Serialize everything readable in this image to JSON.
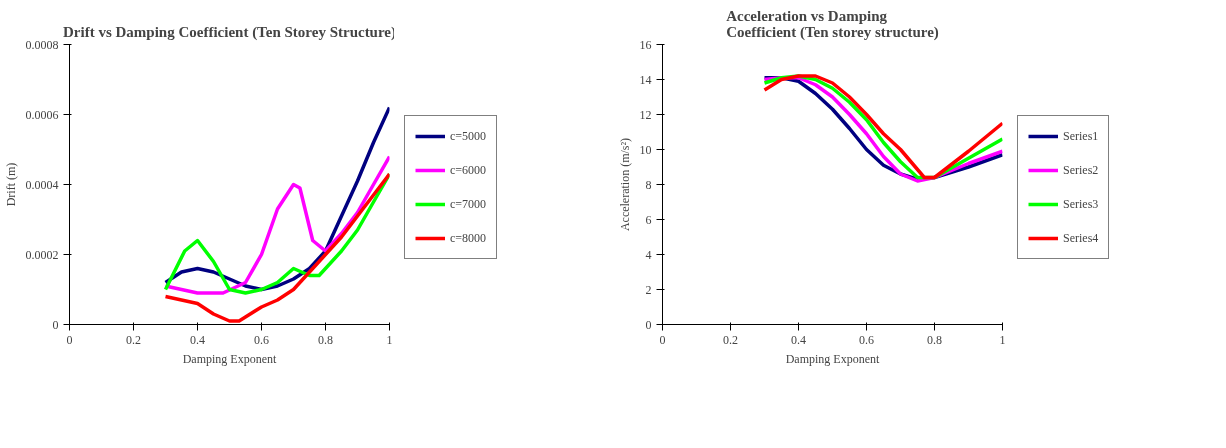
{
  "chart_data": [
    {
      "type": "line",
      "title": "Drift vs Damping Coefficient (Ten Storey Structure)",
      "xlabel": "Damping Exponent",
      "ylabel": "Drift (m)",
      "xlim": [
        0,
        1
      ],
      "xticks": [
        0,
        0.2,
        0.4,
        0.6,
        0.8,
        1
      ],
      "ylim": [
        0,
        0.0008
      ],
      "yticks": [
        0,
        0.0002,
        0.0004,
        0.0006,
        0.0008
      ],
      "grid": false,
      "legend": "right",
      "marker": "none",
      "line_style": "solid",
      "series": [
        {
          "name": "c=5000",
          "color": "#000080",
          "x": [
            0.3,
            0.35,
            0.4,
            0.45,
            0.5,
            0.55,
            0.6,
            0.65,
            0.7,
            0.75,
            0.8,
            0.85,
            0.9,
            0.95,
            1.0
          ],
          "values": [
            0.00012,
            0.00015,
            0.00016,
            0.00015,
            0.00013,
            0.00011,
            0.0001,
            0.00011,
            0.00013,
            0.00016,
            0.00021,
            0.00031,
            0.00041,
            0.00052,
            0.00062
          ]
        },
        {
          "name": "c=6000",
          "color": "#ff00ff",
          "x": [
            0.3,
            0.35,
            0.4,
            0.45,
            0.48,
            0.55,
            0.6,
            0.65,
            0.7,
            0.72,
            0.76,
            0.8,
            0.85,
            0.9,
            0.95,
            1.0
          ],
          "values": [
            0.00011,
            0.0001,
            9e-05,
            9e-05,
            9e-05,
            0.00012,
            0.0002,
            0.00033,
            0.0004,
            0.00039,
            0.00024,
            0.00021,
            0.00026,
            0.00032,
            0.0004,
            0.00048
          ]
        },
        {
          "name": "c=7000",
          "color": "#00ff00",
          "x": [
            0.3,
            0.36,
            0.4,
            0.45,
            0.5,
            0.55,
            0.6,
            0.65,
            0.7,
            0.75,
            0.78,
            0.85,
            0.9,
            0.95,
            1.0
          ],
          "values": [
            0.0001,
            0.00021,
            0.00024,
            0.00018,
            0.0001,
            9e-05,
            0.0001,
            0.00012,
            0.00016,
            0.00014,
            0.00014,
            0.00021,
            0.00027,
            0.00035,
            0.00043
          ]
        },
        {
          "name": "c=8000",
          "color": "#ff0000",
          "x": [
            0.3,
            0.35,
            0.4,
            0.45,
            0.5,
            0.53,
            0.6,
            0.65,
            0.7,
            0.75,
            0.8,
            0.85,
            0.9,
            0.95,
            1.0
          ],
          "values": [
            8e-05,
            7e-05,
            6e-05,
            3e-05,
            1e-05,
            1e-05,
            5e-05,
            7e-05,
            0.0001,
            0.00015,
            0.0002,
            0.00025,
            0.00031,
            0.00037,
            0.00043
          ]
        }
      ]
    },
    {
      "type": "line",
      "title": "Acceleration vs Damping Coefficient (Ten storey structure)",
      "xlabel": "Damping Exponent",
      "ylabel": "Acceleration (m/s²)",
      "xlim": [
        0,
        1
      ],
      "xticks": [
        0,
        0.2,
        0.4,
        0.6,
        0.8,
        1
      ],
      "ylim": [
        0,
        16
      ],
      "yticks": [
        0,
        2,
        4,
        6,
        8,
        10,
        12,
        14,
        16
      ],
      "grid": false,
      "legend": "right",
      "marker": "none",
      "line_style": "solid",
      "series": [
        {
          "name": "Series1",
          "color": "#000080",
          "x": [
            0.3,
            0.35,
            0.4,
            0.45,
            0.5,
            0.55,
            0.6,
            0.65,
            0.7,
            0.75,
            0.8,
            0.9,
            1.0
          ],
          "values": [
            14.1,
            14.1,
            13.9,
            13.2,
            12.3,
            11.2,
            10,
            9.1,
            8.6,
            8.3,
            8.4,
            9,
            9.7
          ]
        },
        {
          "name": "Series2",
          "color": "#ff00ff",
          "x": [
            0.3,
            0.35,
            0.4,
            0.45,
            0.5,
            0.55,
            0.6,
            0.65,
            0.7,
            0.75,
            0.8,
            0.9,
            1.0
          ],
          "values": [
            14,
            14.1,
            14.1,
            13.7,
            13,
            12,
            10.9,
            9.6,
            8.6,
            8.2,
            8.4,
            9.2,
            9.9
          ]
        },
        {
          "name": "Series3",
          "color": "#00ff00",
          "x": [
            0.3,
            0.35,
            0.4,
            0.45,
            0.5,
            0.55,
            0.6,
            0.65,
            0.7,
            0.75,
            0.8,
            0.9,
            1.0
          ],
          "values": [
            13.8,
            14.1,
            14.2,
            14,
            13.5,
            12.7,
            11.7,
            10.4,
            9.3,
            8.4,
            8.4,
            9.5,
            10.6
          ]
        },
        {
          "name": "Series4",
          "color": "#ff0000",
          "x": [
            0.3,
            0.35,
            0.4,
            0.45,
            0.5,
            0.55,
            0.6,
            0.65,
            0.7,
            0.77,
            0.8,
            0.9,
            1.0
          ],
          "values": [
            13.4,
            14,
            14.2,
            14.2,
            13.8,
            13,
            12,
            10.9,
            10,
            8.4,
            8.4,
            9.9,
            11.5
          ]
        }
      ]
    }
  ]
}
